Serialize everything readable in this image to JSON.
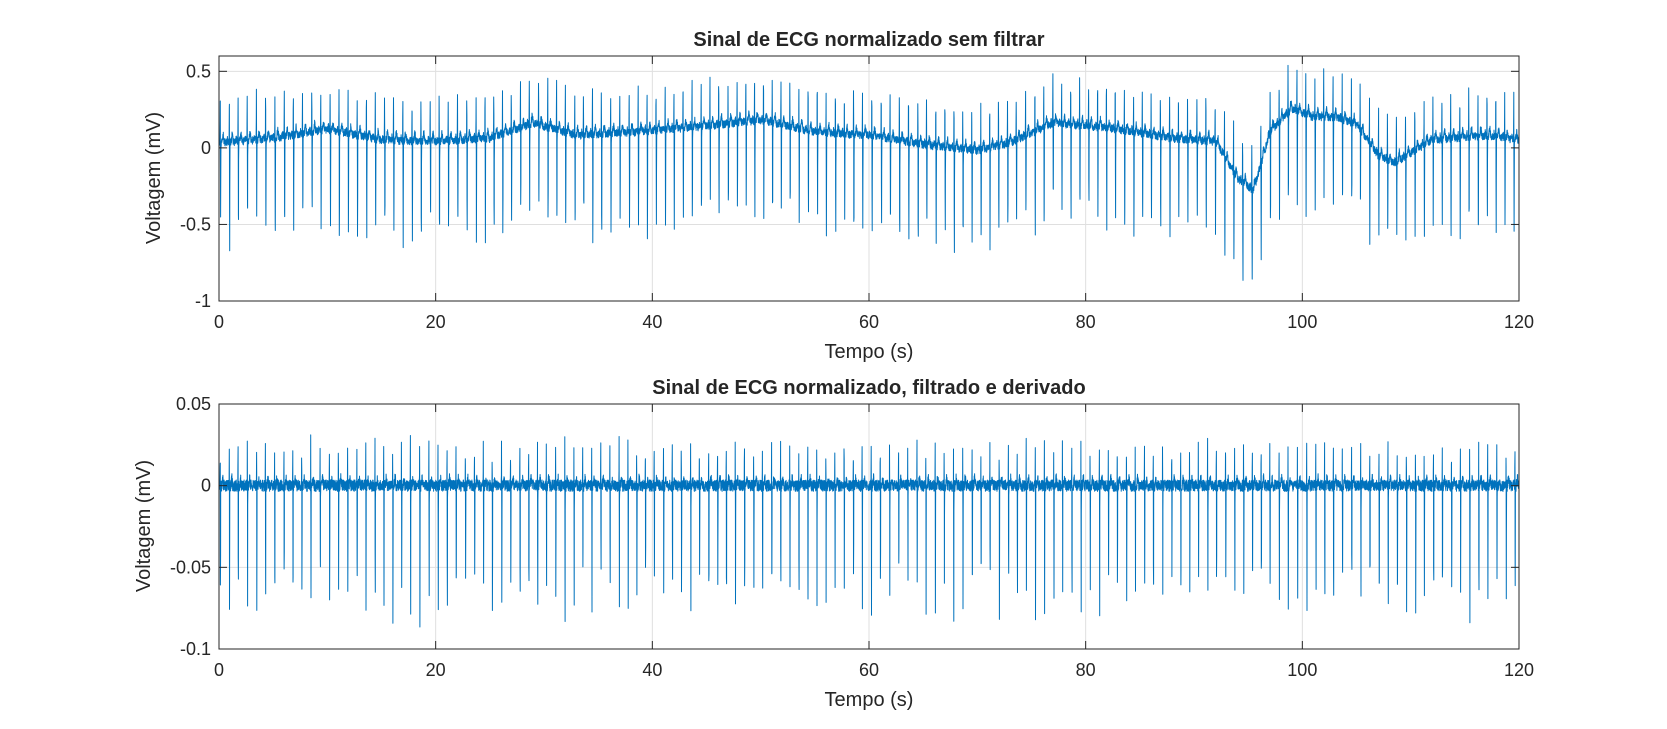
{
  "chart_data": [
    {
      "type": "line",
      "title": "Sinal de ECG normalizado sem filtrar",
      "xlabel": "Tempo (s)",
      "ylabel": "Voltagem (mV)",
      "xlim": [
        0,
        120
      ],
      "ylim": [
        -1,
        0.6
      ],
      "xticks": [
        0,
        20,
        40,
        60,
        80,
        100,
        120
      ],
      "xtick_labels": [
        "0",
        "20",
        "40",
        "60",
        "80",
        "100",
        "120"
      ],
      "yticks": [
        0.5,
        0,
        -0.5,
        -1
      ],
      "ytick_labels": [
        "0.5",
        "0",
        "-0.5",
        "-1"
      ],
      "grid": true,
      "color": "#0072BD",
      "beats_per_minute": 72,
      "r_peak_approx": 0.3,
      "s_trough_approx": -0.62,
      "baseline_wander": [
        [
          0,
          0.03
        ],
        [
          5,
          0.06
        ],
        [
          10,
          0.12
        ],
        [
          15,
          0.05
        ],
        [
          20,
          0.04
        ],
        [
          25,
          0.06
        ],
        [
          29,
          0.16
        ],
        [
          33,
          0.08
        ],
        [
          38,
          0.1
        ],
        [
          45,
          0.14
        ],
        [
          50,
          0.18
        ],
        [
          55,
          0.1
        ],
        [
          60,
          0.08
        ],
        [
          65,
          0.02
        ],
        [
          70,
          -0.02
        ],
        [
          73,
          0.03
        ],
        [
          77,
          0.16
        ],
        [
          82,
          0.13
        ],
        [
          88,
          0.06
        ],
        [
          92,
          0.04
        ],
        [
          94,
          -0.2
        ],
        [
          95.5,
          -0.28
        ],
        [
          97,
          0.1
        ],
        [
          99,
          0.25
        ],
        [
          101,
          0.2
        ],
        [
          103,
          0.2
        ],
        [
          105,
          0.15
        ],
        [
          107,
          -0.05
        ],
        [
          108.5,
          -0.1
        ],
        [
          112,
          0.05
        ],
        [
          117,
          0.08
        ],
        [
          120,
          0.05
        ]
      ]
    },
    {
      "type": "line",
      "title": "Sinal de ECG normalizado, filtrado e derivado",
      "xlabel": "Tempo (s)",
      "ylabel": "Voltagem (mV)",
      "xlim": [
        0,
        120
      ],
      "ylim": [
        -0.1,
        0.05
      ],
      "xticks": [
        0,
        20,
        40,
        60,
        80,
        100,
        120
      ],
      "xtick_labels": [
        "0",
        "20",
        "40",
        "60",
        "80",
        "100",
        "120"
      ],
      "yticks": [
        0.05,
        0,
        -0.05,
        -0.1
      ],
      "ytick_labels": [
        "0.05",
        "0",
        "-0.05",
        "-0.1"
      ],
      "grid": true,
      "color": "#0072BD",
      "beats_per_minute": 72,
      "peak_approx": 0.027,
      "trough_approx": -0.075,
      "baseline_wander": [
        [
          0,
          0
        ],
        [
          120,
          0
        ]
      ]
    }
  ]
}
